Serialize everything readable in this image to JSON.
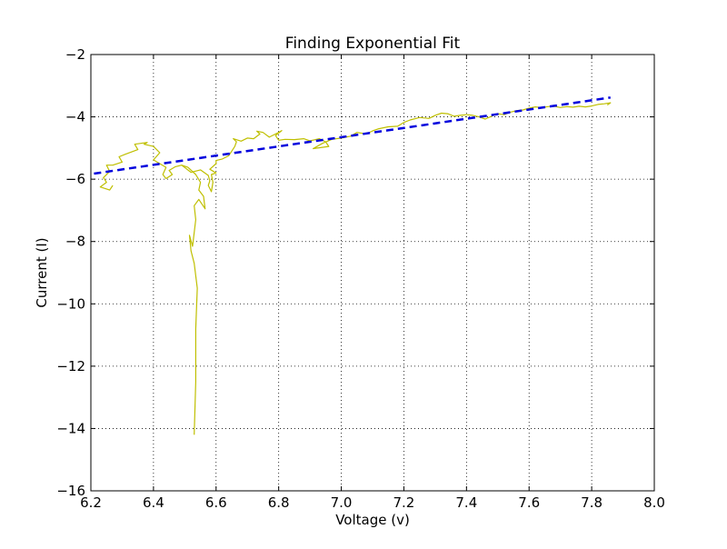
{
  "chart_data": {
    "type": "line",
    "title": "Finding Exponential Fit",
    "xlabel": "Voltage (v)",
    "ylabel": "Current (I)",
    "xlim": [
      6.2,
      8.0
    ],
    "ylim": [
      -16,
      -2
    ],
    "xticks": [
      6.2,
      6.4,
      6.6,
      6.8,
      7.0,
      7.2,
      7.4,
      7.6,
      7.8,
      8.0
    ],
    "yticks": [
      -2,
      -4,
      -6,
      -8,
      -10,
      -12,
      -14,
      -16
    ],
    "xtick_labels": [
      "6.2",
      "6.4",
      "6.6",
      "6.8",
      "7.0",
      "7.2",
      "7.4",
      "7.6",
      "7.8",
      "8.0"
    ],
    "ytick_labels": [
      "−2",
      "−4",
      "−6",
      "−8",
      "−10",
      "−12",
      "−14",
      "−16"
    ],
    "grid": true,
    "grid_style": "dotted",
    "series": [
      {
        "style": "solid",
        "color": "#bfbf00",
        "points": [
          [
            6.53,
            -14.2
          ],
          [
            6.535,
            -12.5
          ],
          [
            6.535,
            -10.8
          ],
          [
            6.54,
            -9.5
          ],
          [
            6.53,
            -8.7
          ],
          [
            6.52,
            -8.3
          ],
          [
            6.515,
            -7.8
          ],
          [
            6.525,
            -8.15
          ],
          [
            6.535,
            -7.3
          ],
          [
            6.53,
            -6.85
          ],
          [
            6.545,
            -6.65
          ],
          [
            6.565,
            -6.95
          ],
          [
            6.56,
            -6.55
          ],
          [
            6.545,
            -6.35
          ],
          [
            6.55,
            -6.1
          ],
          [
            6.535,
            -5.85
          ],
          [
            6.51,
            -5.62
          ],
          [
            6.49,
            -5.55
          ],
          [
            6.52,
            -5.78
          ],
          [
            6.55,
            -5.7
          ],
          [
            6.575,
            -5.88
          ],
          [
            6.58,
            -6.05
          ],
          [
            6.575,
            -6.2
          ],
          [
            6.585,
            -6.4
          ],
          [
            6.59,
            -6.1
          ],
          [
            6.585,
            -5.85
          ],
          [
            6.6,
            -5.8
          ],
          [
            6.58,
            -5.68
          ],
          [
            6.6,
            -5.5
          ],
          [
            6.6,
            -5.4
          ],
          [
            6.62,
            -5.35
          ],
          [
            6.64,
            -5.25
          ],
          [
            6.65,
            -5.1
          ],
          [
            6.66,
            -4.95
          ],
          [
            6.665,
            -4.8
          ],
          [
            6.655,
            -4.7
          ],
          [
            6.68,
            -4.78
          ],
          [
            6.7,
            -4.68
          ],
          [
            6.72,
            -4.7
          ],
          [
            6.74,
            -4.55
          ],
          [
            6.73,
            -4.46
          ],
          [
            6.75,
            -4.5
          ],
          [
            6.77,
            -4.65
          ],
          [
            6.79,
            -4.55
          ],
          [
            6.8,
            -4.5
          ],
          [
            6.81,
            -4.44
          ],
          [
            6.79,
            -4.6
          ],
          [
            6.8,
            -4.75
          ],
          [
            6.82,
            -4.72
          ],
          [
            6.85,
            -4.73
          ],
          [
            6.88,
            -4.7
          ],
          [
            6.9,
            -4.77
          ],
          [
            6.93,
            -4.7
          ],
          [
            6.95,
            -4.8
          ],
          [
            6.96,
            -4.95
          ],
          [
            6.91,
            -5.02
          ],
          [
            6.94,
            -4.85
          ],
          [
            6.97,
            -4.72
          ],
          [
            7.0,
            -4.68
          ],
          [
            7.03,
            -4.62
          ],
          [
            7.05,
            -4.5
          ],
          [
            7.08,
            -4.55
          ],
          [
            7.1,
            -4.45
          ],
          [
            7.12,
            -4.38
          ],
          [
            7.15,
            -4.32
          ],
          [
            7.18,
            -4.3
          ],
          [
            7.2,
            -4.18
          ],
          [
            7.22,
            -4.1
          ],
          [
            7.25,
            -4.02
          ],
          [
            7.28,
            -4.05
          ],
          [
            7.3,
            -3.95
          ],
          [
            7.32,
            -3.88
          ],
          [
            7.34,
            -3.9
          ],
          [
            7.36,
            -3.98
          ],
          [
            7.38,
            -3.95
          ],
          [
            7.4,
            -3.93
          ],
          [
            7.42,
            -3.95
          ],
          [
            7.44,
            -4.0
          ],
          [
            7.46,
            -4.07
          ],
          [
            7.48,
            -3.98
          ],
          [
            7.5,
            -3.9
          ],
          [
            7.52,
            -3.93
          ],
          [
            7.54,
            -3.85
          ],
          [
            7.56,
            -3.8
          ],
          [
            7.58,
            -3.78
          ],
          [
            7.6,
            -3.72
          ],
          [
            7.62,
            -3.68
          ],
          [
            7.64,
            -3.7
          ],
          [
            7.66,
            -3.67
          ],
          [
            7.68,
            -3.66
          ],
          [
            7.7,
            -3.7
          ],
          [
            7.72,
            -3.67
          ],
          [
            7.74,
            -3.69
          ],
          [
            7.76,
            -3.66
          ],
          [
            7.78,
            -3.68
          ],
          [
            7.8,
            -3.65
          ],
          [
            7.82,
            -3.6
          ],
          [
            7.84,
            -3.58
          ],
          [
            7.86,
            -3.55
          ],
          [
            7.85,
            -3.62
          ]
        ],
        "branch": [
          [
            6.49,
            -5.55
          ],
          [
            6.47,
            -5.6
          ],
          [
            6.45,
            -5.72
          ],
          [
            6.46,
            -5.85
          ],
          [
            6.44,
            -5.98
          ],
          [
            6.43,
            -5.85
          ],
          [
            6.44,
            -5.62
          ],
          [
            6.4,
            -5.38
          ],
          [
            6.42,
            -5.15
          ],
          [
            6.4,
            -4.95
          ],
          [
            6.37,
            -4.88
          ],
          [
            6.38,
            -4.82
          ],
          [
            6.34,
            -4.88
          ],
          [
            6.35,
            -5.05
          ],
          [
            6.31,
            -5.2
          ],
          [
            6.29,
            -5.28
          ],
          [
            6.3,
            -5.45
          ],
          [
            6.27,
            -5.55
          ],
          [
            6.25,
            -5.55
          ],
          [
            6.26,
            -5.75
          ],
          [
            6.24,
            -5.95
          ],
          [
            6.25,
            -6.1
          ],
          [
            6.23,
            -6.25
          ],
          [
            6.26,
            -6.35
          ],
          [
            6.27,
            -6.2
          ]
        ]
      },
      {
        "style": "dashed",
        "color": "#0000dd",
        "points": [
          [
            6.21,
            -5.82
          ],
          [
            7.86,
            -3.38
          ]
        ]
      }
    ]
  }
}
